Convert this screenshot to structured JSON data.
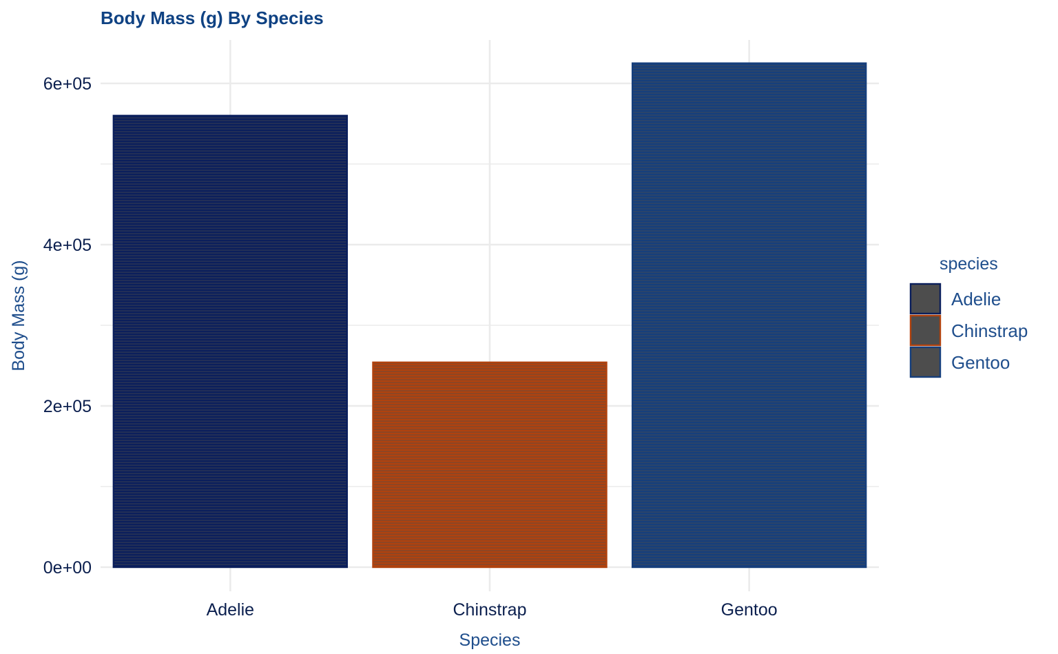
{
  "chart_data": {
    "type": "bar",
    "title": "Body Mass (g) By Species",
    "xlabel": "Species",
    "ylabel": "Body Mass (g)",
    "categories": [
      "Adelie",
      "Chinstrap",
      "Gentoo"
    ],
    "values": [
      560000,
      254000,
      625000
    ],
    "ylim": [
      0,
      650000
    ],
    "y_ticks": [
      0,
      200000,
      400000,
      600000
    ],
    "y_tick_labels": [
      "0e+00",
      "2e+05",
      "4e+05",
      "6e+05"
    ],
    "y_minor_ticks": [
      100000,
      300000,
      500000
    ],
    "grid": true,
    "legend": {
      "title": "species",
      "placement": "right",
      "entries": [
        "Adelie",
        "Chinstrap",
        "Gentoo"
      ]
    },
    "colors": {
      "Adelie": "#0b1f5c",
      "Chinstrap": "#b0420e",
      "Gentoo": "#163f7c",
      "fill_stripe": "#4d4d4d",
      "legend_fill": "#4d4d4d",
      "grid": "#ebebeb",
      "title": "#0f4283",
      "tick_label": "#0b1f4e",
      "axis_title": "#1f4e8c"
    }
  }
}
